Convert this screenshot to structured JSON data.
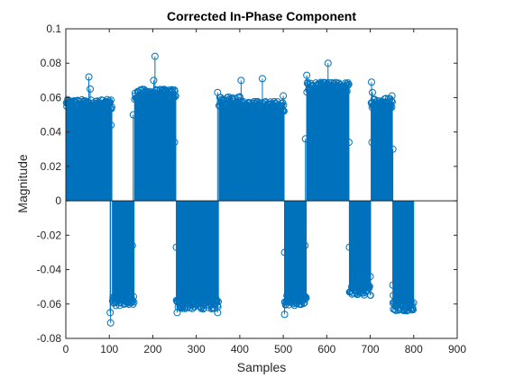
{
  "chart_data": {
    "type": "stem",
    "title": "Corrected In-Phase Component",
    "xlabel": "Samples",
    "ylabel": "Magnitude",
    "xlim": [
      0,
      900
    ],
    "ylim": [
      -0.08,
      0.1
    ],
    "xticks": [
      0,
      100,
      200,
      300,
      400,
      500,
      600,
      700,
      800,
      900
    ],
    "yticks": [
      -0.08,
      -0.06,
      -0.04,
      -0.02,
      0,
      0.02,
      0.04,
      0.06,
      0.08,
      0.1
    ],
    "xtick_labels": [
      "0",
      "100",
      "200",
      "300",
      "400",
      "500",
      "600",
      "700",
      "800",
      "900"
    ],
    "ytick_labels": [
      "-0.08",
      "-0.06",
      "-0.04",
      "-0.02",
      "0",
      "0.02",
      "0.04",
      "0.06",
      "0.08",
      "0.1"
    ],
    "baseline": 0,
    "segments": [
      {
        "x_start": 1,
        "x_end": 106,
        "level": 0.056
      },
      {
        "x_start": 107,
        "x_end": 157,
        "level": -0.058
      },
      {
        "x_start": 158,
        "x_end": 253,
        "level": 0.062
      },
      {
        "x_start": 254,
        "x_end": 351,
        "level": -0.06
      },
      {
        "x_start": 352,
        "x_end": 403,
        "level": 0.058
      },
      {
        "x_start": 404,
        "x_end": 502,
        "level": 0.055
      },
      {
        "x_start": 503,
        "x_end": 553,
        "level": -0.058
      },
      {
        "x_start": 554,
        "x_end": 651,
        "level": 0.066
      },
      {
        "x_start": 652,
        "x_end": 701,
        "level": -0.052
      },
      {
        "x_start": 702,
        "x_end": 751,
        "level": 0.057
      },
      {
        "x_start": 752,
        "x_end": 800,
        "level": -0.061
      }
    ],
    "outliers": [
      {
        "x": 53,
        "y": 0.072
      },
      {
        "x": 56,
        "y": 0.065
      },
      {
        "x": 104,
        "y": 0.044
      },
      {
        "x": 103,
        "y": -0.071
      },
      {
        "x": 102,
        "y": -0.065
      },
      {
        "x": 150,
        "y": -0.059
      },
      {
        "x": 153,
        "y": -0.026
      },
      {
        "x": 205,
        "y": 0.084
      },
      {
        "x": 202,
        "y": 0.07
      },
      {
        "x": 155,
        "y": 0.05
      },
      {
        "x": 250,
        "y": 0.034
      },
      {
        "x": 254,
        "y": -0.027
      },
      {
        "x": 256,
        "y": -0.065
      },
      {
        "x": 349,
        "y": -0.065
      },
      {
        "x": 349,
        "y": 0.063
      },
      {
        "x": 403,
        "y": 0.07
      },
      {
        "x": 402,
        "y": 0.01
      },
      {
        "x": 452,
        "y": 0.071
      },
      {
        "x": 455,
        "y": 0.022
      },
      {
        "x": 500,
        "y": 0.061
      },
      {
        "x": 503,
        "y": -0.03
      },
      {
        "x": 503,
        "y": -0.066
      },
      {
        "x": 550,
        "y": -0.026
      },
      {
        "x": 554,
        "y": 0.073
      },
      {
        "x": 551,
        "y": 0.036
      },
      {
        "x": 603,
        "y": 0.08
      },
      {
        "x": 652,
        "y": -0.027
      },
      {
        "x": 651,
        "y": 0.034
      },
      {
        "x": 700,
        "y": -0.044
      },
      {
        "x": 703,
        "y": 0.069
      },
      {
        "x": 705,
        "y": 0.063
      },
      {
        "x": 704,
        "y": 0.034
      },
      {
        "x": 750,
        "y": 0.061
      },
      {
        "x": 752,
        "y": 0.03
      },
      {
        "x": 752,
        "y": -0.049
      },
      {
        "x": 753,
        "y": -0.055
      }
    ],
    "color": "#0072BD",
    "grid": false,
    "box": true
  }
}
